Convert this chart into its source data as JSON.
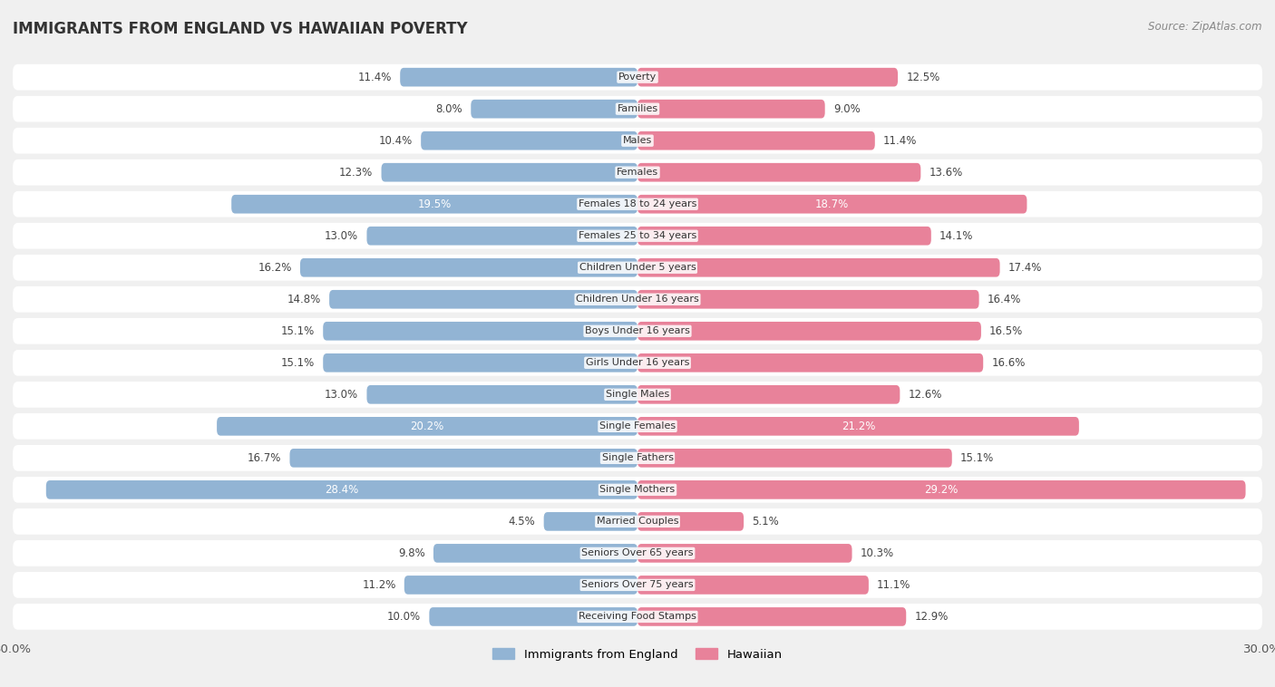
{
  "title": "IMMIGRANTS FROM ENGLAND VS HAWAIIAN POVERTY",
  "source": "Source: ZipAtlas.com",
  "categories": [
    "Poverty",
    "Families",
    "Males",
    "Females",
    "Females 18 to 24 years",
    "Females 25 to 34 years",
    "Children Under 5 years",
    "Children Under 16 years",
    "Boys Under 16 years",
    "Girls Under 16 years",
    "Single Males",
    "Single Females",
    "Single Fathers",
    "Single Mothers",
    "Married Couples",
    "Seniors Over 65 years",
    "Seniors Over 75 years",
    "Receiving Food Stamps"
  ],
  "england_values": [
    11.4,
    8.0,
    10.4,
    12.3,
    19.5,
    13.0,
    16.2,
    14.8,
    15.1,
    15.1,
    13.0,
    20.2,
    16.7,
    28.4,
    4.5,
    9.8,
    11.2,
    10.0
  ],
  "hawaii_values": [
    12.5,
    9.0,
    11.4,
    13.6,
    18.7,
    14.1,
    17.4,
    16.4,
    16.5,
    16.6,
    12.6,
    21.2,
    15.1,
    29.2,
    5.1,
    10.3,
    11.1,
    12.9
  ],
  "england_color": "#92b4d4",
  "hawaii_color": "#e8829a",
  "highlight_threshold": 18.0,
  "max_value": 30.0,
  "background_color": "#f0f0f0",
  "row_color_odd": "#f8f8f8",
  "row_color_even": "#e8e8e8",
  "legend_england": "Immigrants from England",
  "legend_hawaii": "Hawaiian"
}
